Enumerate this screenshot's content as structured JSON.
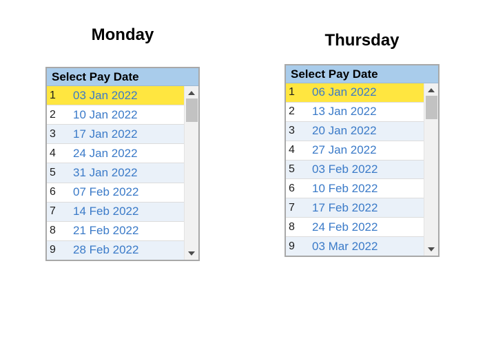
{
  "panels": [
    {
      "title": "Monday",
      "header": "Select Pay Date",
      "selected_index": 0,
      "rows": [
        {
          "num": "1",
          "date": "03 Jan 2022"
        },
        {
          "num": "2",
          "date": "10 Jan 2022"
        },
        {
          "num": "3",
          "date": "17 Jan 2022"
        },
        {
          "num": "4",
          "date": "24 Jan 2022"
        },
        {
          "num": "5",
          "date": "31 Jan 2022"
        },
        {
          "num": "6",
          "date": "07 Feb 2022"
        },
        {
          "num": "7",
          "date": "14 Feb 2022"
        },
        {
          "num": "8",
          "date": "21 Feb 2022"
        },
        {
          "num": "9",
          "date": "28 Feb 2022"
        }
      ]
    },
    {
      "title": "Thursday",
      "header": "Select Pay Date",
      "selected_index": 0,
      "rows": [
        {
          "num": "1",
          "date": "06 Jan 2022"
        },
        {
          "num": "2",
          "date": "13 Jan 2022"
        },
        {
          "num": "3",
          "date": "20 Jan 2022"
        },
        {
          "num": "4",
          "date": "27 Jan 2022"
        },
        {
          "num": "5",
          "date": "03 Feb 2022"
        },
        {
          "num": "6",
          "date": "10 Feb 2022"
        },
        {
          "num": "7",
          "date": "17 Feb 2022"
        },
        {
          "num": "8",
          "date": "24 Feb 2022"
        },
        {
          "num": "9",
          "date": "03 Mar 2022"
        }
      ]
    }
  ],
  "colors": {
    "header_bg": "#a9cceb",
    "selected_row_bg": "#ffe640",
    "alt_row_bg": "#eaf1f9",
    "date_text": "#3a7ac8",
    "row_number_text": "#1a1a1a",
    "listbox_border": "#a8a8a8",
    "scrollbar_track": "#f1f1f1",
    "scrollbar_thumb": "#c2c2c2",
    "scrollbar_arrow": "#4d4d4d"
  }
}
